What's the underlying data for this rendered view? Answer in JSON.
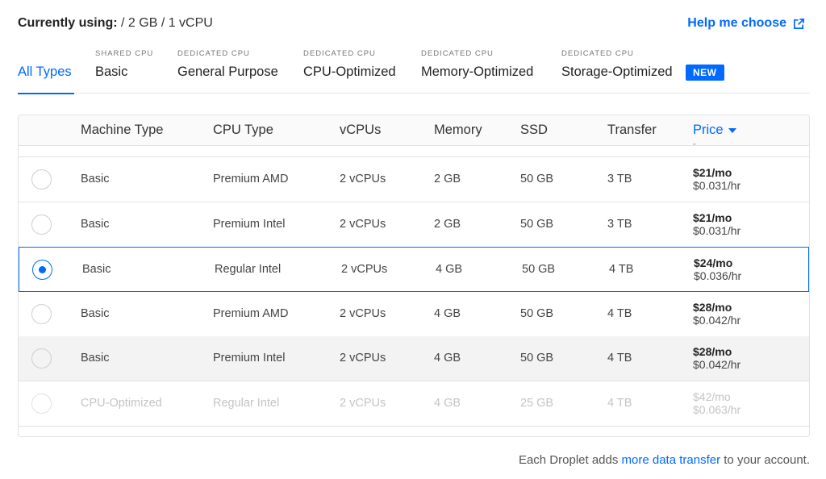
{
  "header": {
    "current_label": "Currently using:",
    "current_value": "/ 2 GB / 1 vCPU",
    "help_label": "Help me choose",
    "help_icon": "external-link-icon"
  },
  "tabs": [
    {
      "sub": "",
      "label": "All Types",
      "active": true
    },
    {
      "sub": "SHARED CPU",
      "label": "Basic"
    },
    {
      "sub": "DEDICATED CPU",
      "label": "General Purpose"
    },
    {
      "sub": "DEDICATED CPU",
      "label": "CPU-Optimized"
    },
    {
      "sub": "DEDICATED CPU",
      "label": "Memory-Optimized"
    },
    {
      "sub": "DEDICATED CPU",
      "label": "Storage-Optimized"
    }
  ],
  "new_badge": "NEW",
  "table": {
    "columns": [
      "Machine Type",
      "CPU Type",
      "vCPUs",
      "Memory",
      "SSD",
      "Transfer",
      "Price"
    ],
    "sort_icon": "caret-down-icon",
    "peek_text": "ˇ",
    "rows": [
      {
        "machine": "Basic",
        "cpu": "Premium AMD",
        "vcpus": "2 vCPUs",
        "memory": "2 GB",
        "ssd": "50 GB",
        "transfer": "3 TB",
        "price_mo": "$21/mo",
        "price_hr": "$0.031/hr",
        "state": "normal"
      },
      {
        "machine": "Basic",
        "cpu": "Premium Intel",
        "vcpus": "2 vCPUs",
        "memory": "2 GB",
        "ssd": "50 GB",
        "transfer": "3 TB",
        "price_mo": "$21/mo",
        "price_hr": "$0.031/hr",
        "state": "normal"
      },
      {
        "machine": "Basic",
        "cpu": "Regular Intel",
        "vcpus": "2 vCPUs",
        "memory": "4 GB",
        "ssd": "50 GB",
        "transfer": "4 TB",
        "price_mo": "$24/mo",
        "price_hr": "$0.036/hr",
        "state": "selected"
      },
      {
        "machine": "Basic",
        "cpu": "Premium AMD",
        "vcpus": "2 vCPUs",
        "memory": "4 GB",
        "ssd": "50 GB",
        "transfer": "4 TB",
        "price_mo": "$28/mo",
        "price_hr": "$0.042/hr",
        "state": "normal"
      },
      {
        "machine": "Basic",
        "cpu": "Premium Intel",
        "vcpus": "2 vCPUs",
        "memory": "4 GB",
        "ssd": "50 GB",
        "transfer": "4 TB",
        "price_mo": "$28/mo",
        "price_hr": "$0.042/hr",
        "state": "hover"
      },
      {
        "machine": "CPU-Optimized",
        "cpu": "Regular Intel",
        "vcpus": "2 vCPUs",
        "memory": "4 GB",
        "ssd": "25 GB",
        "transfer": "4 TB",
        "price_mo": "$42/mo",
        "price_hr": "$0.063/hr",
        "state": "disabled"
      }
    ]
  },
  "footer": {
    "before": "Each Droplet adds ",
    "link": "more data transfer",
    "after": " to your account."
  }
}
